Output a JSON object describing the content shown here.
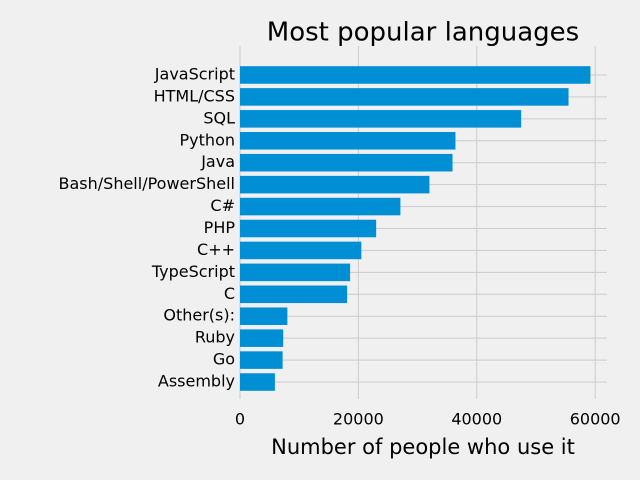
{
  "chart_data": {
    "type": "barh",
    "title": "Most popular languages",
    "x_label": "Number of people who use it",
    "categories": [
      "JavaScript",
      "HTML/CSS",
      "SQL",
      "Python",
      "Java",
      "Bash/Shell/PowerShell",
      "C#",
      "PHP",
      "C++",
      "TypeScript",
      "C",
      "Other(s):",
      "Ruby",
      "Go",
      "Assembly"
    ],
    "values": [
      59200,
      55500,
      47500,
      36400,
      35900,
      32000,
      27100,
      23000,
      20500,
      18600,
      18100,
      8000,
      7300,
      7200,
      5900
    ],
    "color": "#008fd5",
    "xlim": [
      0,
      62000
    ],
    "xticks": [
      0,
      20000,
      40000,
      60000
    ],
    "grid": true
  }
}
